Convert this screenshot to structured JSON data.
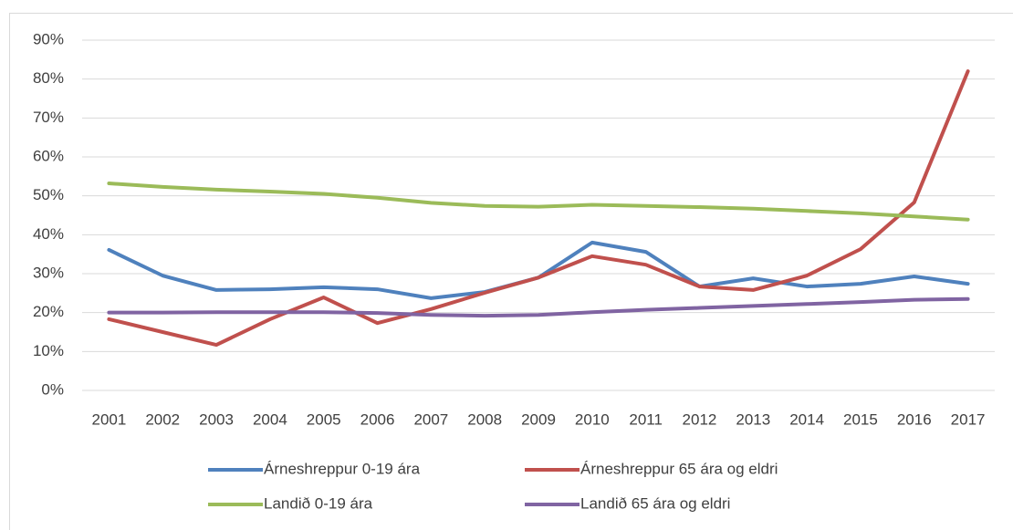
{
  "chart_data": {
    "type": "line",
    "categories": [
      "2001",
      "2002",
      "2003",
      "2004",
      "2005",
      "2006",
      "2007",
      "2008",
      "2009",
      "2010",
      "2011",
      "2012",
      "2013",
      "2014",
      "2015",
      "2016",
      "2017"
    ],
    "series": [
      {
        "name": "Árneshreppur 0-19 ára",
        "color": "#4f81bd",
        "values": [
          36.1,
          29.5,
          25.8,
          26,
          26.5,
          26,
          23.7,
          25.3,
          29,
          38,
          35.6,
          26.7,
          28.8,
          26.7,
          27.4,
          29.3,
          27.4
        ]
      },
      {
        "name": "Árneshreppur 65 ára og eldri",
        "color": "#c0504d",
        "values": [
          18.3,
          15,
          11.7,
          18.3,
          23.9,
          17.3,
          20.9,
          25.1,
          29,
          34.5,
          32.3,
          26.7,
          25.8,
          29.5,
          36.3,
          48.3,
          82
        ]
      },
      {
        "name": "Landið 0-19 ára",
        "color": "#9bbb59",
        "values": [
          53.2,
          52.3,
          51.6,
          51.1,
          50.5,
          49.5,
          48.2,
          47.4,
          47.2,
          47.7,
          47.4,
          47.1,
          46.7,
          46.1,
          45.5,
          44.7,
          43.9
        ]
      },
      {
        "name": "Landið 65 ára og eldri",
        "color": "#8064a2",
        "values": [
          20,
          20,
          20.1,
          20.1,
          20.1,
          19.9,
          19.4,
          19.2,
          19.4,
          20.1,
          20.7,
          21.2,
          21.7,
          22.2,
          22.7,
          23.3,
          23.5
        ]
      }
    ],
    "ylim": [
      0,
      90
    ],
    "yticks": [
      {
        "value": 0,
        "label": "0%"
      },
      {
        "value": 10,
        "label": "10%"
      },
      {
        "value": 20,
        "label": "20%"
      },
      {
        "value": 30,
        "label": "30%"
      },
      {
        "value": 40,
        "label": "40%"
      },
      {
        "value": 50,
        "label": "50%"
      },
      {
        "value": 60,
        "label": "60%"
      },
      {
        "value": 70,
        "label": "70%"
      },
      {
        "value": 80,
        "label": "80%"
      },
      {
        "value": 90,
        "label": "90%"
      }
    ],
    "grid": true,
    "legend": "bottom"
  }
}
